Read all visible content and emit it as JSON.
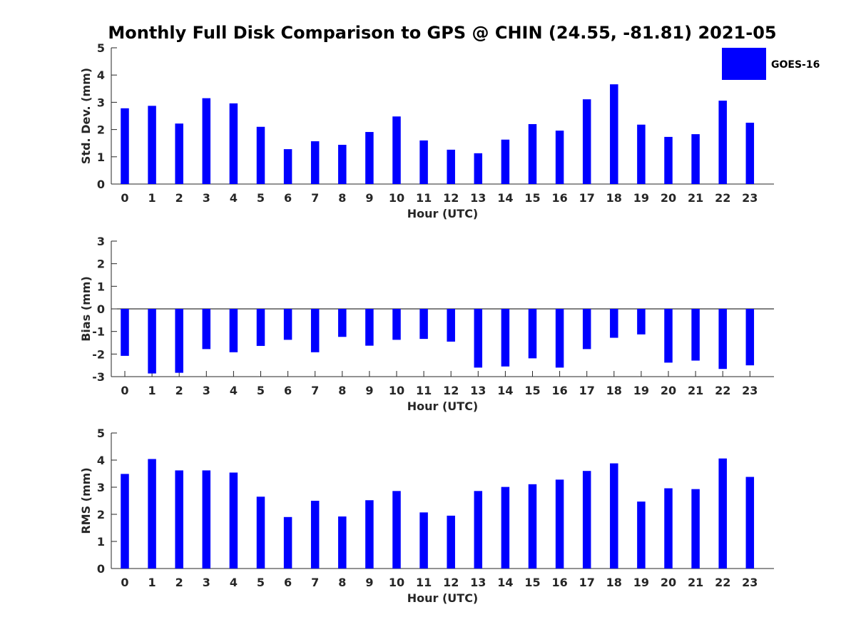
{
  "chart_data": {
    "title": "Monthly Full Disk Comparison to GPS @ CHIN (24.55, -81.81) 2021-05",
    "type": "bar",
    "color": "#0000ff",
    "legend": {
      "position": "top-right",
      "entries": [
        "GOES-16"
      ]
    },
    "categories": [
      "0",
      "1",
      "2",
      "3",
      "4",
      "5",
      "6",
      "7",
      "8",
      "9",
      "10",
      "11",
      "12",
      "13",
      "14",
      "15",
      "16",
      "17",
      "18",
      "19",
      "20",
      "21",
      "22",
      "23"
    ],
    "panels": [
      {
        "id": "std",
        "ylabel": "Std. Dev. (mm)",
        "xlabel": "Hour (UTC)",
        "ylim": [
          0,
          5
        ],
        "yticks": [
          0,
          1,
          2,
          3,
          4,
          5
        ],
        "series": [
          {
            "name": "GOES-16",
            "values": [
              2.78,
              2.87,
              2.22,
              3.15,
              2.96,
              2.1,
              1.28,
              1.57,
              1.44,
              1.91,
              2.48,
              1.6,
              1.26,
              1.13,
              1.63,
              2.2,
              1.96,
              3.11,
              3.66,
              2.18,
              1.73,
              1.83,
              3.06,
              2.25
            ]
          }
        ]
      },
      {
        "id": "bias",
        "ylabel": "Bias (mm)",
        "xlabel": "Hour (UTC)",
        "ylim": [
          -3,
          3
        ],
        "yticks": [
          -3,
          -2,
          -1,
          0,
          1,
          2,
          3
        ],
        "zero_line": true,
        "series": [
          {
            "name": "GOES-16",
            "values": [
              -2.08,
              -2.86,
              -2.83,
              -1.78,
              -1.92,
              -1.64,
              -1.37,
              -1.92,
              -1.24,
              -1.63,
              -1.37,
              -1.33,
              -1.45,
              -2.6,
              -2.55,
              -2.19,
              -2.6,
              -1.78,
              -1.28,
              -1.13,
              -2.38,
              -2.29,
              -2.66,
              -2.5
            ]
          }
        ]
      },
      {
        "id": "rms",
        "ylabel": "RMS (mm)",
        "xlabel": "Hour (UTC)",
        "ylim": [
          0,
          5
        ],
        "yticks": [
          0,
          1,
          2,
          3,
          4,
          5
        ],
        "series": [
          {
            "name": "GOES-16",
            "values": [
              3.49,
              4.04,
              3.62,
              3.62,
              3.54,
              2.65,
              1.9,
              2.5,
              1.92,
              2.52,
              2.86,
              2.07,
              1.95,
              2.86,
              3.01,
              3.11,
              3.28,
              3.6,
              3.88,
              2.47,
              2.96,
              2.93,
              4.06,
              3.38
            ]
          }
        ]
      }
    ]
  }
}
